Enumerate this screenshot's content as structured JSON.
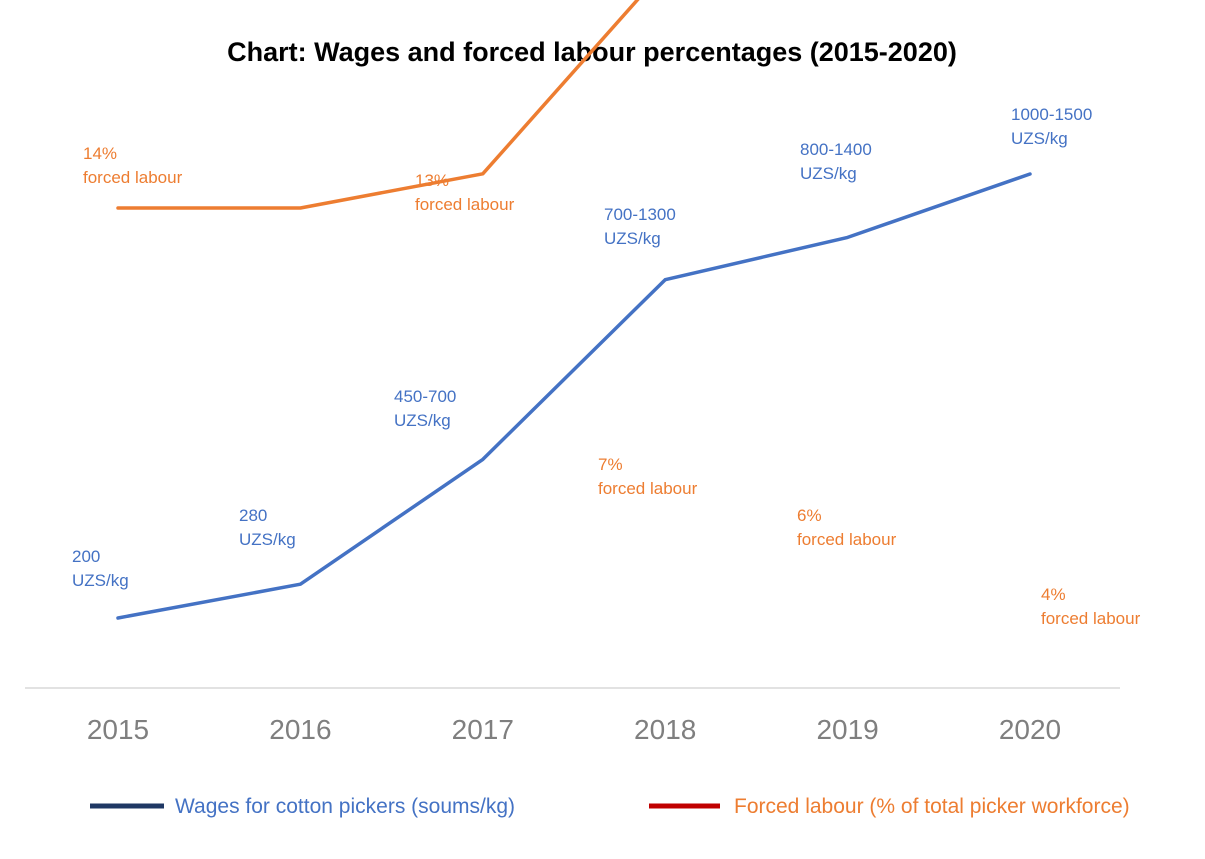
{
  "chart_data": {
    "type": "line",
    "title": "Chart: Wages and forced labour percentages (2015-2020)",
    "x": [
      "2015",
      "2016",
      "2017",
      "2018",
      "2019",
      "2020"
    ],
    "grid": false,
    "legend_position": "bottom",
    "series": [
      {
        "name": "Wages for cotton pickers (soums/kg)",
        "legend_color": "#1f3864",
        "color": "#4472c4",
        "values": [
          200,
          280,
          575,
          1000,
          1100,
          1250
        ],
        "labels": [
          [
            "200",
            "UZS/kg"
          ],
          [
            "280",
            "UZS/kg"
          ],
          [
            "450-700",
            "UZS/kg"
          ],
          [
            "700-1300",
            "UZS/kg"
          ],
          [
            "800-1400",
            "UZS/kg"
          ],
          [
            "1000-1500",
            "UZS/kg"
          ]
        ]
      },
      {
        "name": "Forced labour (% of total picker workforce)",
        "legend_color": "#c00000",
        "color": "#ed7d31",
        "values": [
          14,
          14,
          13,
          7,
          6,
          4
        ],
        "labels": [
          [
            "14%",
            "forced labour"
          ],
          [
            "",
            ""
          ],
          [
            "13%",
            "forced labour"
          ],
          [
            "7%",
            "forced labour"
          ],
          [
            "6%",
            "forced labour"
          ],
          [
            "4%",
            "forced labour"
          ]
        ]
      }
    ]
  }
}
